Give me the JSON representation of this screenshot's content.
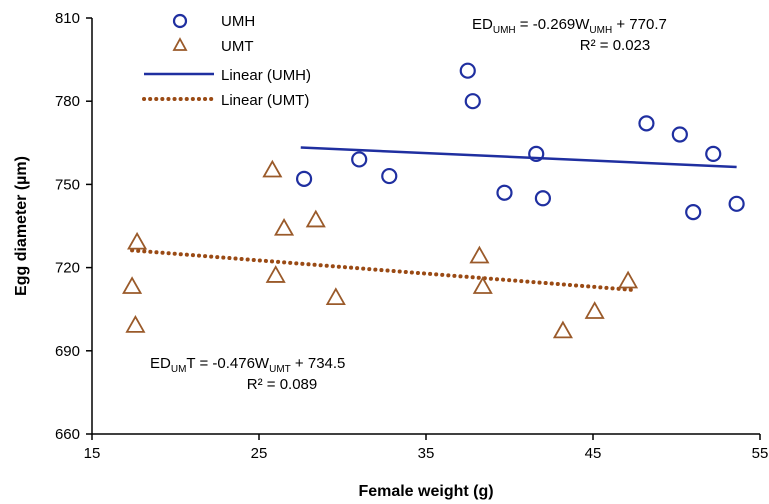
{
  "chart_data": {
    "type": "scatter",
    "xlabel": "Female weight (g)",
    "ylabel": "Egg diameter (µm)",
    "xlim": [
      15,
      55
    ],
    "ylim": [
      660,
      810
    ],
    "xticks": [
      15,
      25,
      35,
      45,
      55
    ],
    "yticks": [
      660,
      690,
      720,
      750,
      780,
      810
    ],
    "legend_position": "top-left",
    "series": [
      {
        "name": "UMH",
        "marker": "circle",
        "color": "#1f2fa0",
        "points": [
          [
            27.7,
            752
          ],
          [
            31.0,
            759
          ],
          [
            32.8,
            753
          ],
          [
            37.5,
            791
          ],
          [
            37.8,
            780
          ],
          [
            39.7,
            747
          ],
          [
            41.6,
            761
          ],
          [
            42.0,
            745
          ],
          [
            48.2,
            772
          ],
          [
            50.2,
            768
          ],
          [
            51.0,
            740
          ],
          [
            52.2,
            761
          ],
          [
            53.6,
            743
          ]
        ]
      },
      {
        "name": "UMT",
        "marker": "triangle",
        "color": "#9a5a2a",
        "points": [
          [
            17.4,
            713
          ],
          [
            17.6,
            699
          ],
          [
            17.7,
            729
          ],
          [
            25.8,
            755
          ],
          [
            26.0,
            717
          ],
          [
            26.5,
            734
          ],
          [
            28.4,
            737
          ],
          [
            29.6,
            709
          ],
          [
            38.2,
            724
          ],
          [
            38.4,
            713
          ],
          [
            43.2,
            697
          ],
          [
            45.1,
            704
          ],
          [
            47.1,
            715
          ]
        ]
      }
    ],
    "trendlines": [
      {
        "name": "Linear (UMH)",
        "series": "UMH",
        "style": "solid",
        "color": "#1f2fa0",
        "slope": -0.269,
        "intercept": 770.7,
        "x_range": [
          27.5,
          53.6
        ],
        "equation_parts": [
          "ED",
          "UMH",
          " = -0.269W",
          "UMH",
          " + 770.7"
        ],
        "r2": "R² = 0.023"
      },
      {
        "name": "Linear (UMT)",
        "series": "UMT",
        "style": "dotted",
        "color": "#9a4a14",
        "slope": -0.476,
        "intercept": 734.5,
        "x_range": [
          17.4,
          47.3
        ],
        "equation_parts": [
          "ED",
          "UM",
          "T = -0.476W",
          "UMT",
          " + 734.5"
        ],
        "r2": "R² = 0.089"
      }
    ]
  }
}
